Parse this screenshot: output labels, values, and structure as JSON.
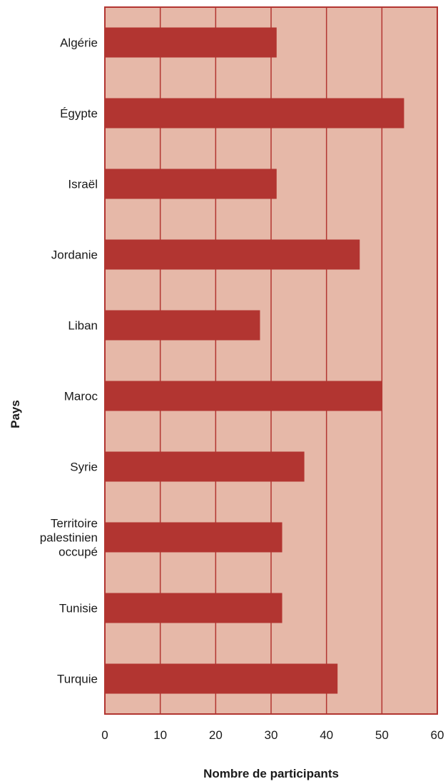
{
  "chart_data": {
    "type": "bar",
    "orientation": "horizontal",
    "categories": [
      "Algérie",
      "Égypte",
      "Israël",
      "Jordanie",
      "Liban",
      "Maroc",
      "Syrie",
      "Territoire palestinien occupé",
      "Tunisie",
      "Turquie"
    ],
    "category_lines": [
      [
        "Algérie"
      ],
      [
        "Égypte"
      ],
      [
        "Israël"
      ],
      [
        "Jordanie"
      ],
      [
        "Liban"
      ],
      [
        "Maroc"
      ],
      [
        "Syrie"
      ],
      [
        "Territoire",
        "palestinien",
        "occupé"
      ],
      [
        "Tunisie"
      ],
      [
        "Turquie"
      ]
    ],
    "values": [
      31,
      54,
      31,
      46,
      28,
      50,
      36,
      32,
      32,
      42
    ],
    "xlim": [
      0,
      60
    ],
    "xticks": [
      0,
      10,
      20,
      30,
      40,
      50,
      60
    ],
    "xlabel": "Nombre de participants",
    "ylabel": "Pays",
    "grid": "vertical",
    "colors": {
      "bar": "#b23531",
      "plot_background": "#e6b8a8",
      "grid": "#b23531",
      "border": "#b23531"
    }
  }
}
